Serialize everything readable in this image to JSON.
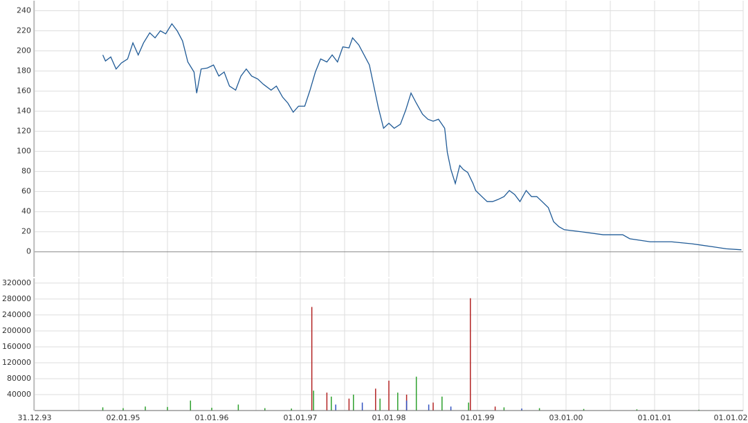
{
  "chart_data": [
    {
      "type": "line",
      "color": "#1f5a96",
      "grid": true,
      "xlim": [
        1994,
        2002
      ],
      "ylim": [
        -25,
        250
      ],
      "yticks": [
        0,
        20,
        40,
        60,
        80,
        100,
        120,
        140,
        160,
        180,
        200,
        220,
        240
      ],
      "x": [
        1994.77,
        1994.8,
        1994.86,
        1994.92,
        1994.98,
        1995.05,
        1995.11,
        1995.17,
        1995.23,
        1995.3,
        1995.36,
        1995.42,
        1995.48,
        1995.55,
        1995.61,
        1995.67,
        1995.73,
        1995.8,
        1995.83,
        1995.88,
        1995.95,
        1996.02,
        1996.08,
        1996.14,
        1996.2,
        1996.27,
        1996.33,
        1996.39,
        1996.45,
        1996.52,
        1996.58,
        1996.67,
        1996.73,
        1996.8,
        1996.86,
        1996.92,
        1996.98,
        1997.05,
        1997.11,
        1997.17,
        1997.23,
        1997.3,
        1997.36,
        1997.42,
        1997.48,
        1997.55,
        1997.59,
        1997.66,
        1997.72,
        1997.78,
        1997.83,
        1997.88,
        1997.94,
        1998.0,
        1998.06,
        1998.13,
        1998.19,
        1998.25,
        1998.31,
        1998.38,
        1998.44,
        1998.5,
        1998.56,
        1998.63,
        1998.66,
        1998.7,
        1998.75,
        1998.8,
        1998.84,
        1998.89,
        1998.95,
        1998.98,
        1999.05,
        1999.11,
        1999.17,
        1999.23,
        1999.3,
        1999.36,
        1999.42,
        1999.48,
        1999.55,
        1999.61,
        1999.67,
        1999.73,
        1999.8,
        1999.86,
        1999.92,
        1999.98,
        2000.17,
        2000.42,
        2000.64,
        2000.72,
        2000.95,
        2001.19,
        2001.42,
        2001.66,
        2001.81,
        2001.98
      ],
      "values": [
        196,
        190,
        194,
        182,
        188,
        192,
        208,
        196,
        208,
        218,
        213,
        220,
        217,
        227,
        220,
        210,
        189,
        179,
        158,
        182,
        183,
        186,
        175,
        179,
        165,
        161,
        175,
        182,
        175,
        172,
        167,
        161,
        165,
        154,
        148,
        139,
        145,
        145,
        161,
        179,
        192,
        189,
        196,
        189,
        204,
        203,
        213,
        206,
        196,
        186,
        165,
        144,
        123,
        128,
        123,
        127,
        141,
        158,
        148,
        137,
        132,
        130,
        132,
        123,
        99,
        82,
        68,
        86,
        82,
        79,
        68,
        61,
        55,
        50,
        50,
        52,
        55,
        61,
        57,
        50,
        61,
        55,
        55,
        50,
        44,
        30,
        25,
        22,
        20,
        17,
        17,
        13,
        10,
        10,
        8,
        5,
        3,
        2
      ]
    },
    {
      "type": "bar",
      "grid": true,
      "xlim": [
        1994,
        2002
      ],
      "ylim": [
        0,
        332000
      ],
      "yticks": [
        40000,
        80000,
        120000,
        160000,
        200000,
        240000,
        280000,
        320000
      ],
      "xticks": [
        {
          "value": 1994,
          "label": "31.12.93"
        },
        {
          "value": 1995,
          "label": "02.01.95"
        },
        {
          "value": 1996,
          "label": "01.01.96"
        },
        {
          "value": 1997,
          "label": "01.01.97"
        },
        {
          "value": 1998,
          "label": "01.01.98"
        },
        {
          "value": 1999,
          "label": "01.01.99"
        },
        {
          "value": 2000,
          "label": "03.01.00"
        },
        {
          "value": 2001,
          "label": "01.01.01"
        },
        {
          "value": 2002,
          "label": "01.01.02"
        }
      ],
      "minor_xticks": [
        1994.5,
        1995.5,
        1996.5,
        1997.5,
        1998.5,
        1999.5,
        2000.5,
        2001.5
      ],
      "series": [
        {
          "color": "#2ca02c",
          "x": [
            1994.77,
            1995.0,
            1995.25,
            1995.5,
            1995.76,
            1996.0,
            1996.3,
            1996.6,
            1996.9,
            1997.15,
            1997.35,
            1997.6,
            1997.9,
            1998.1,
            1998.31,
            1998.6,
            1998.9,
            1999.3,
            1999.7,
            2000.2,
            2000.8,
            2001.5
          ],
          "values": [
            8000,
            6000,
            10000,
            9000,
            25000,
            7000,
            15000,
            6000,
            5000,
            50000,
            35000,
            40000,
            30000,
            45000,
            85000,
            35000,
            20000,
            8000,
            6000,
            4000,
            3000,
            2000
          ]
        },
        {
          "color": "#b22222",
          "x": [
            1997.13,
            1997.3,
            1997.55,
            1997.85,
            1998.0,
            1998.2,
            1998.5,
            1998.92,
            1999.2
          ],
          "values": [
            260000,
            45000,
            30000,
            55000,
            75000,
            40000,
            20000,
            282000,
            10000
          ]
        },
        {
          "color": "#3050c0",
          "x": [
            1997.4,
            1997.7,
            1998.2,
            1998.45,
            1998.7,
            1999.5
          ],
          "values": [
            15000,
            20000,
            25000,
            15000,
            10000,
            5000
          ]
        }
      ]
    }
  ]
}
